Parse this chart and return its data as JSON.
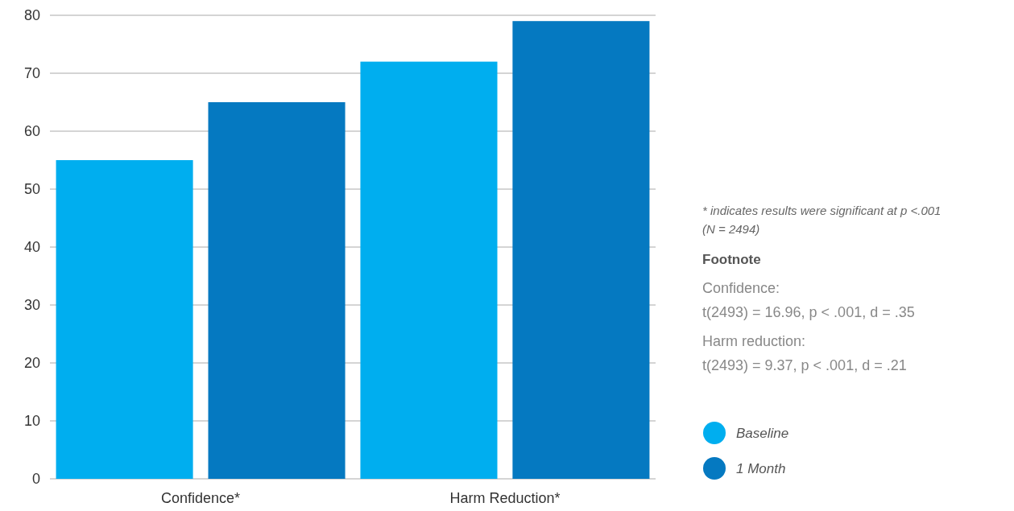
{
  "chart_data": {
    "type": "bar",
    "categories": [
      "Confidence*",
      "Harm Reduction*"
    ],
    "series": [
      {
        "name": "Baseline",
        "color": "#00aeef",
        "values": [
          55,
          72
        ]
      },
      {
        "name": "1 Month",
        "color": "#0579c1",
        "values": [
          65,
          79
        ]
      }
    ],
    "ylim": [
      0,
      80
    ],
    "yticks": [
      0,
      10,
      20,
      30,
      40,
      50,
      60,
      70,
      80
    ],
    "grid": "y",
    "legend": "right",
    "annotations": [
      "* indicates results were significant at p <.001",
      "(N = 2494)",
      "Footnote",
      "Confidence:",
      "t(2493) = 16.96, p < .001, d = .35",
      "Harm reduction:",
      "t(2493) = 9.37, p < .001, d = .21"
    ]
  }
}
